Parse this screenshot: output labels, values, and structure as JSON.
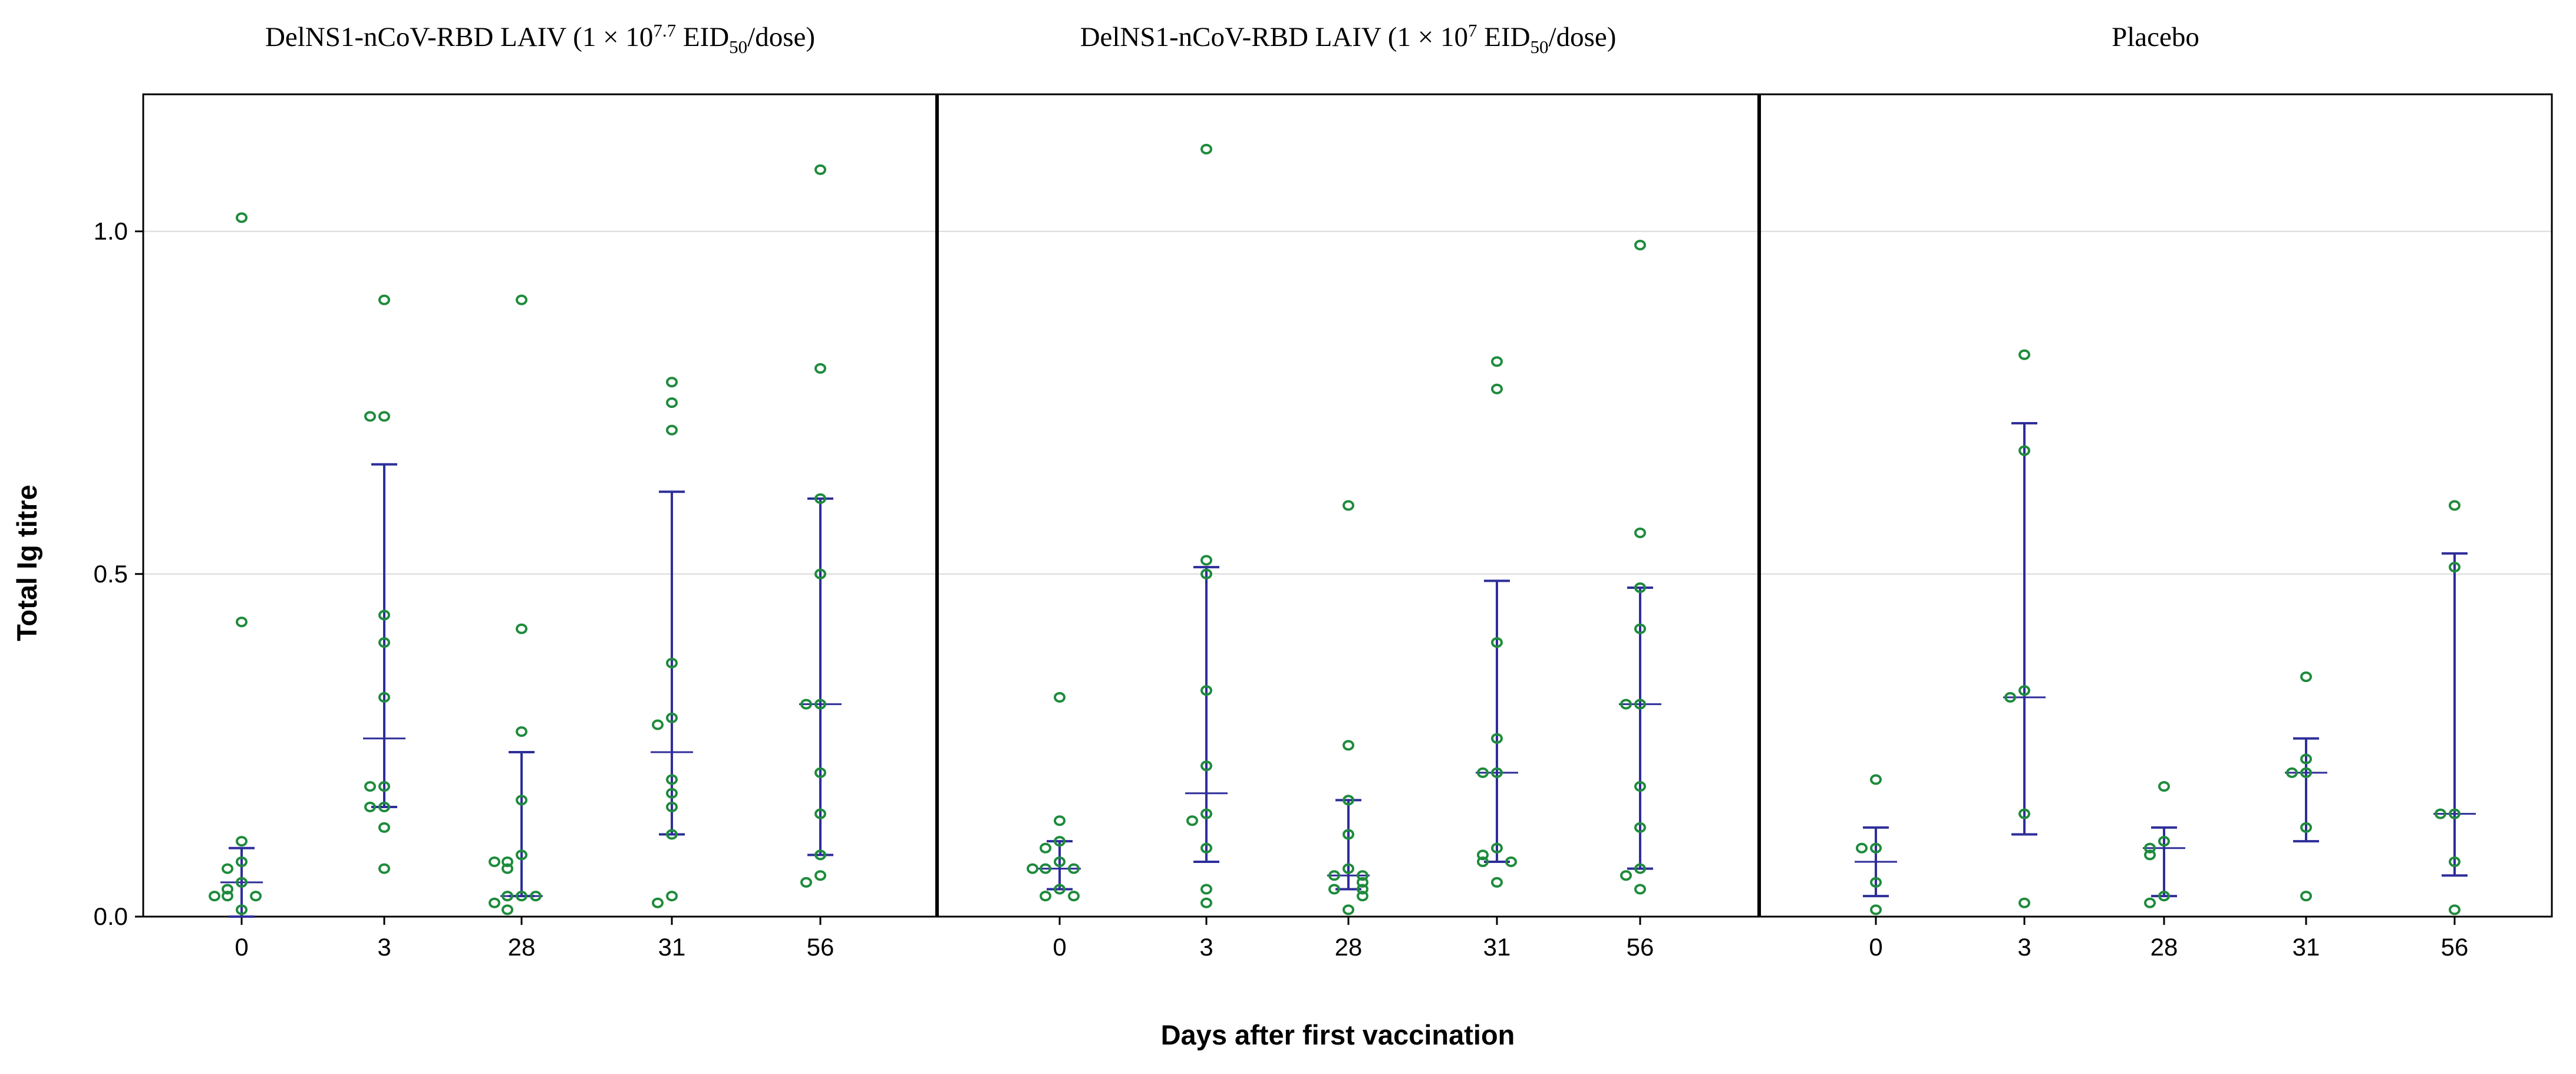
{
  "chart_data": {
    "type": "scatter",
    "subtype": "dot plot with mean and error bars, three panels",
    "ylabel": "Total Ig titre",
    "xlabel": "Days after first vaccination",
    "ylim": [
      0,
      1.2
    ],
    "yticks": [
      0.0,
      0.5,
      1.0
    ],
    "ytick_labels": [
      "0.0",
      "0.5",
      "1.0"
    ],
    "categories": [
      "0",
      "3",
      "28",
      "31",
      "56"
    ],
    "grid": true,
    "colors": {
      "points": "#1e8b3c",
      "error_bars": "#2e2e9a",
      "axis": "#000000",
      "grid": "#d9d9d9"
    },
    "panels": [
      {
        "title_parts": [
          {
            "text": "DelNS1-nCoV-RBD LAIV (1 × 10",
            "style": "normal"
          },
          {
            "text": "7.7",
            "style": "sup"
          },
          {
            "text": " EID",
            "style": "normal"
          },
          {
            "text": "50",
            "style": "sub"
          },
          {
            "text": "/dose)",
            "style": "normal"
          }
        ],
        "groups": [
          {
            "day": "0",
            "points": [
              1.02,
              0.43,
              0.11,
              0.08,
              0.07,
              0.05,
              0.04,
              0.03,
              0.03,
              0.03,
              0.01
            ],
            "mean": 0.05,
            "lower": 0.0,
            "upper": 0.1
          },
          {
            "day": "3",
            "points": [
              0.9,
              0.73,
              0.73,
              0.44,
              0.4,
              0.32,
              0.19,
              0.19,
              0.16,
              0.16,
              0.13,
              0.07
            ],
            "mean": 0.26,
            "lower": 0.16,
            "upper": 0.66
          },
          {
            "day": "28",
            "points": [
              0.9,
              0.42,
              0.27,
              0.17,
              0.09,
              0.08,
              0.07,
              0.08,
              0.03,
              0.03,
              0.03,
              0.02,
              0.01
            ],
            "mean": 0.03,
            "lower": 0.03,
            "upper": 0.24
          },
          {
            "day": "31",
            "points": [
              0.78,
              0.75,
              0.71,
              0.37,
              0.29,
              0.28,
              0.2,
              0.18,
              0.16,
              0.12,
              0.03,
              0.02
            ],
            "mean": 0.24,
            "lower": 0.12,
            "upper": 0.62
          },
          {
            "day": "56",
            "points": [
              1.09,
              0.8,
              0.61,
              0.5,
              0.31,
              0.31,
              0.21,
              0.15,
              0.09,
              0.06,
              0.05
            ],
            "mean": 0.31,
            "lower": 0.09,
            "upper": 0.61
          }
        ]
      },
      {
        "title_parts": [
          {
            "text": "DelNS1-nCoV-RBD LAIV (1 × 10",
            "style": "normal"
          },
          {
            "text": "7",
            "style": "sup"
          },
          {
            "text": " EID",
            "style": "normal"
          },
          {
            "text": "50",
            "style": "sub"
          },
          {
            "text": "/dose)",
            "style": "normal"
          }
        ],
        "groups": [
          {
            "day": "0",
            "points": [
              0.32,
              0.14,
              0.11,
              0.1,
              0.08,
              0.07,
              0.07,
              0.07,
              0.04,
              0.03,
              0.03
            ],
            "mean": 0.07,
            "lower": 0.04,
            "upper": 0.11
          },
          {
            "day": "3",
            "points": [
              1.12,
              0.52,
              0.5,
              0.33,
              0.22,
              0.15,
              0.14,
              0.1,
              0.04,
              0.02
            ],
            "mean": 0.18,
            "lower": 0.08,
            "upper": 0.51
          },
          {
            "day": "28",
            "points": [
              0.6,
              0.25,
              0.17,
              0.12,
              0.07,
              0.06,
              0.06,
              0.05,
              0.04,
              0.04,
              0.03,
              0.01
            ],
            "mean": 0.06,
            "lower": 0.04,
            "upper": 0.17
          },
          {
            "day": "31",
            "points": [
              0.81,
              0.77,
              0.4,
              0.26,
              0.21,
              0.21,
              0.1,
              0.09,
              0.08,
              0.08,
              0.05
            ],
            "mean": 0.21,
            "lower": 0.08,
            "upper": 0.49
          },
          {
            "day": "56",
            "points": [
              0.98,
              0.56,
              0.48,
              0.42,
              0.31,
              0.31,
              0.19,
              0.13,
              0.07,
              0.06,
              0.04
            ],
            "mean": 0.31,
            "lower": 0.07,
            "upper": 0.48
          }
        ]
      },
      {
        "title_parts": [
          {
            "text": "Placebo",
            "style": "normal"
          }
        ],
        "groups": [
          {
            "day": "0",
            "points": [
              0.2,
              0.1,
              0.1,
              0.05,
              0.01
            ],
            "mean": 0.08,
            "lower": 0.03,
            "upper": 0.13
          },
          {
            "day": "3",
            "points": [
              0.82,
              0.68,
              0.33,
              0.32,
              0.15,
              0.02
            ],
            "mean": 0.32,
            "lower": 0.12,
            "upper": 0.72
          },
          {
            "day": "28",
            "points": [
              0.19,
              0.11,
              0.1,
              0.09,
              0.03,
              0.02
            ],
            "mean": 0.1,
            "lower": 0.03,
            "upper": 0.13
          },
          {
            "day": "31",
            "points": [
              0.35,
              0.23,
              0.21,
              0.21,
              0.13,
              0.03
            ],
            "mean": 0.21,
            "lower": 0.11,
            "upper": 0.26
          },
          {
            "day": "56",
            "points": [
              0.6,
              0.51,
              0.15,
              0.15,
              0.08,
              0.01
            ],
            "mean": 0.15,
            "lower": 0.06,
            "upper": 0.53
          }
        ]
      }
    ]
  }
}
